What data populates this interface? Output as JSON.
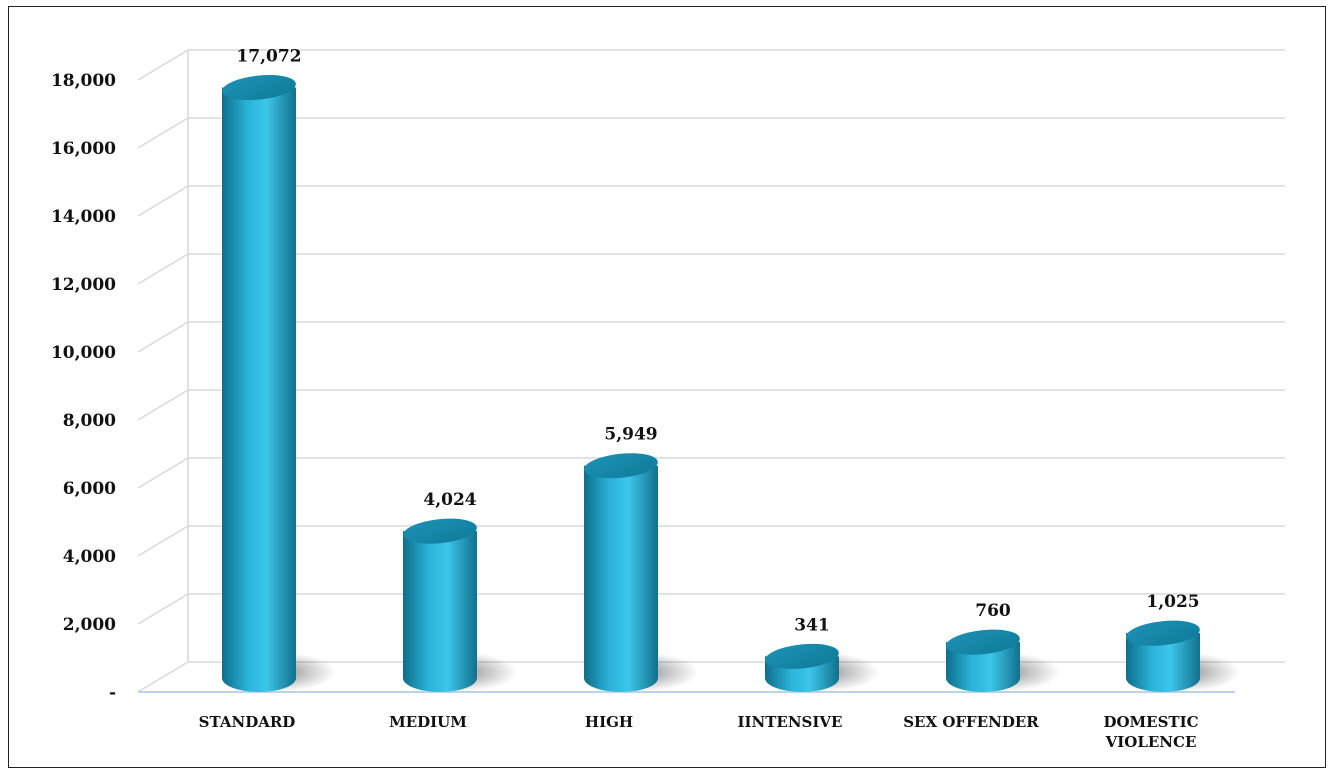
{
  "chart_data": {
    "type": "bar",
    "style": "3d-cylinder",
    "categories": [
      "STANDARD",
      "MEDIUM",
      "HIGH",
      "IINTENSIVE",
      "SEX OFFENDER",
      "DOMESTIC VIOLENCE"
    ],
    "category_lines": [
      [
        "STANDARD"
      ],
      [
        "MEDIUM"
      ],
      [
        "HIGH"
      ],
      [
        "IINTENSIVE"
      ],
      [
        "SEX OFFENDER"
      ],
      [
        "DOMESTIC",
        "VIOLENCE"
      ]
    ],
    "values": [
      17072,
      4024,
      5949,
      341,
      760,
      1025
    ],
    "data_labels": [
      "17,072",
      "4,024",
      "5,949",
      "341",
      "760",
      "1,025"
    ],
    "ylim": [
      0,
      18000
    ],
    "yticks": [
      0,
      2000,
      4000,
      6000,
      8000,
      10000,
      12000,
      14000,
      16000,
      18000
    ],
    "ytick_labels": [
      "-",
      "2,000",
      "4,000",
      "6,000",
      "8,000",
      "10,000",
      "12,000",
      "14,000",
      "16,000",
      "18,000"
    ],
    "grid": true,
    "legend": "none",
    "bar_color": "#2bb3d9",
    "title": "",
    "xlabel": "",
    "ylabel": ""
  }
}
